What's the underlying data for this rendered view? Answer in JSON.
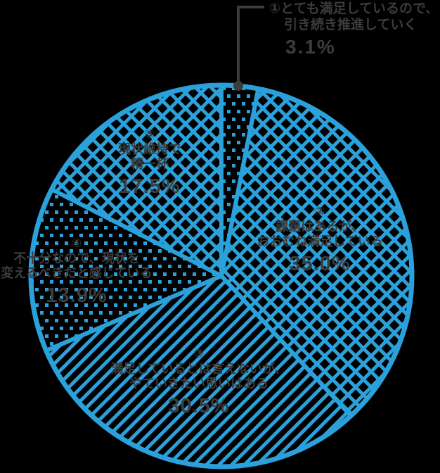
{
  "page": {
    "background": "#000000"
  },
  "chart_data": {
    "type": "pie",
    "unit": "%",
    "direction": "clockwise",
    "start_angle_deg": 0,
    "legend_position": "none",
    "title": "",
    "categories": [
      "①とても満足しているので、引き続き推進していく",
      "②課題はあるが、おおむね満足している",
      "③満足しているとは言えないが、やていきたい思いはある",
      "④不十分なので、現状を変えるべきだと感じている",
      "⑤現状維持で精一杯"
    ],
    "values": [
      3.1,
      35.0,
      30.5,
      13.9,
      17.5
    ],
    "slices": [
      {
        "num": "①",
        "lines": [
          "とても満足しているので、",
          "引き続き推進していく"
        ],
        "pct": "3.1%",
        "value": 3.1,
        "pattern": "dots",
        "label_placement": "outside-callout"
      },
      {
        "num": "②",
        "lines": [
          "課題はあるが、",
          "おおむね満足している"
        ],
        "pct": "35.0%",
        "value": 35.0,
        "pattern": "cross",
        "label_placement": "inside"
      },
      {
        "num": "③",
        "lines": [
          "満足しているとは言えないが、",
          "やていきたい思いはある"
        ],
        "pct": "30.5%",
        "value": 30.5,
        "pattern": "diag",
        "label_placement": "inside"
      },
      {
        "num": "④",
        "lines": [
          "不十分なので、現状を",
          "変えるべきだと感じている"
        ],
        "pct": "13.9%",
        "value": 13.9,
        "pattern": "dots",
        "label_placement": "inside"
      },
      {
        "num": "⑤",
        "lines": [
          "現状維持で",
          "精一杯"
        ],
        "pct": "17.5%",
        "value": 17.5,
        "pattern": "cross",
        "label_placement": "inside"
      }
    ],
    "colors": {
      "line": "#2BA1DB",
      "background": "#000000",
      "text": "#3C3C3C"
    }
  }
}
